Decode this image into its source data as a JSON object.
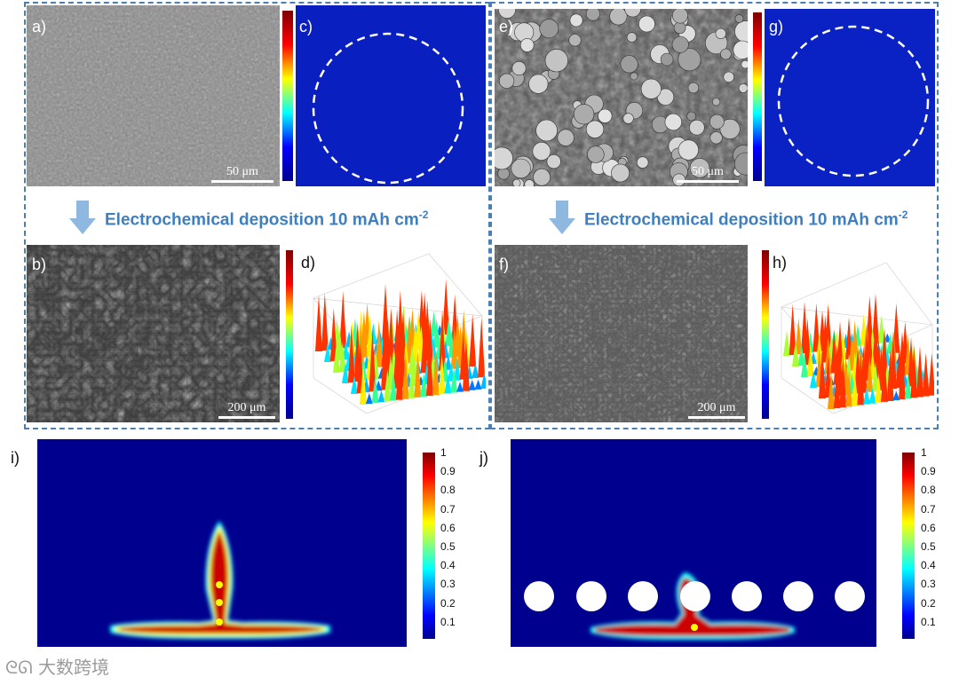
{
  "panels": {
    "a": {
      "label": "a)",
      "scale": "50 μm"
    },
    "b": {
      "label": "b)",
      "scale": "200 μm"
    },
    "c": {
      "label": "c)"
    },
    "d": {
      "label": "d)"
    },
    "e": {
      "label": "e)",
      "scale": "50 μm"
    },
    "f": {
      "label": "f)",
      "scale": "200 μm"
    },
    "g": {
      "label": "g)"
    },
    "h": {
      "label": "h)"
    },
    "i": {
      "label": "i)"
    },
    "j": {
      "label": "j)"
    }
  },
  "deposition": {
    "left": "Electrochemical deposition 10 mAh cm",
    "right": "Electrochemical deposition 10 mAh cm",
    "superscript": "-2"
  },
  "colorbar": {
    "ticks": [
      "1",
      "0.9",
      "0.8",
      "0.7",
      "0.6",
      "0.5",
      "0.4",
      "0.3",
      "0.2",
      "0.1"
    ]
  },
  "colors": {
    "dashed_border": "#4a7fb5",
    "arrow": "#8fb8e0",
    "text_accent": "#3f7fc0",
    "field_background": "#00008f"
  },
  "watermark": "大数跨境"
}
